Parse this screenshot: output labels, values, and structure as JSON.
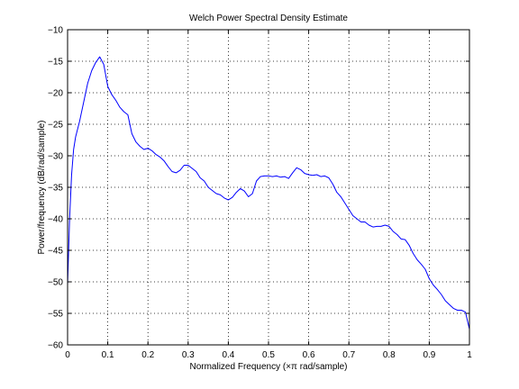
{
  "chart_data": {
    "type": "line",
    "title": "Welch Power Spectral Density Estimate",
    "xlabel": "Normalized Frequency  (×π rad/sample)",
    "ylabel": "Power/frequency (dB/rad/sample)",
    "xlim": [
      0,
      1
    ],
    "ylim": [
      -60,
      -10
    ],
    "xticks": [
      0,
      0.1,
      0.2,
      0.3,
      0.4,
      0.5,
      0.6,
      0.7,
      0.8,
      0.9,
      1
    ],
    "xtick_labels": [
      "0",
      "0.1",
      "0.2",
      "0.3",
      "0.4",
      "0.5",
      "0.6",
      "0.7",
      "0.8",
      "0.9",
      "1"
    ],
    "yticks": [
      -60,
      -55,
      -50,
      -45,
      -40,
      -35,
      -30,
      -25,
      -20,
      -15,
      -10
    ],
    "ytick_labels": [
      "−60",
      "−55",
      "−50",
      "−45",
      "−40",
      "−35",
      "−30",
      "−25",
      "−20",
      "−15",
      "−10"
    ],
    "grid": true,
    "line_color": "#0000ff",
    "x": [
      0,
      0.005,
      0.01,
      0.015,
      0.02,
      0.03,
      0.04,
      0.05,
      0.06,
      0.07,
      0.08,
      0.09,
      0.1,
      0.11,
      0.12,
      0.13,
      0.14,
      0.15,
      0.16,
      0.17,
      0.18,
      0.19,
      0.2,
      0.21,
      0.22,
      0.23,
      0.24,
      0.25,
      0.26,
      0.27,
      0.28,
      0.29,
      0.3,
      0.31,
      0.32,
      0.33,
      0.34,
      0.35,
      0.36,
      0.37,
      0.38,
      0.39,
      0.4,
      0.41,
      0.42,
      0.43,
      0.44,
      0.45,
      0.46,
      0.47,
      0.48,
      0.49,
      0.5,
      0.51,
      0.52,
      0.53,
      0.54,
      0.55,
      0.56,
      0.57,
      0.58,
      0.59,
      0.6,
      0.61,
      0.62,
      0.63,
      0.64,
      0.65,
      0.66,
      0.67,
      0.68,
      0.69,
      0.7,
      0.71,
      0.72,
      0.73,
      0.74,
      0.75,
      0.76,
      0.77,
      0.78,
      0.79,
      0.8,
      0.81,
      0.82,
      0.83,
      0.84,
      0.85,
      0.86,
      0.87,
      0.88,
      0.89,
      0.9,
      0.91,
      0.92,
      0.93,
      0.94,
      0.95,
      0.96,
      0.97,
      0.98,
      0.99,
      1
    ],
    "values": [
      -50.5,
      -40,
      -33,
      -29,
      -27,
      -24.5,
      -21.5,
      -18.5,
      -16.5,
      -15.2,
      -14.3,
      -15.5,
      -19,
      -20.3,
      -21.2,
      -22.3,
      -23,
      -23.5,
      -26.5,
      -27.8,
      -28.5,
      -29,
      -28.8,
      -29.2,
      -29.8,
      -30.2,
      -30.8,
      -31.7,
      -32.5,
      -32.7,
      -32.3,
      -31.5,
      -31.5,
      -32,
      -32.5,
      -33.5,
      -34,
      -35,
      -35.5,
      -36,
      -36.2,
      -36.7,
      -37,
      -36.6,
      -35.8,
      -35.2,
      -35.6,
      -36.5,
      -36,
      -34,
      -33.3,
      -33.2,
      -33.2,
      -33.3,
      -33.2,
      -33.4,
      -33.3,
      -33.6,
      -32.7,
      -31.9,
      -32.2,
      -32.8,
      -33,
      -33.1,
      -33,
      -33.3,
      -33.2,
      -33.5,
      -34.5,
      -35.8,
      -36.5,
      -37.5,
      -38.5,
      -39.5,
      -40,
      -40.5,
      -40.5,
      -41,
      -41.3,
      -41.2,
      -41.2,
      -41,
      -41.2,
      -42,
      -42.5,
      -43.2,
      -43.3,
      -44.2,
      -45.5,
      -46.5,
      -47.2,
      -48,
      -49.5,
      -50.5,
      -51.2,
      -52,
      -53,
      -53.6,
      -54.2,
      -54.5,
      -54.5,
      -54.8,
      -57.5
    ]
  }
}
